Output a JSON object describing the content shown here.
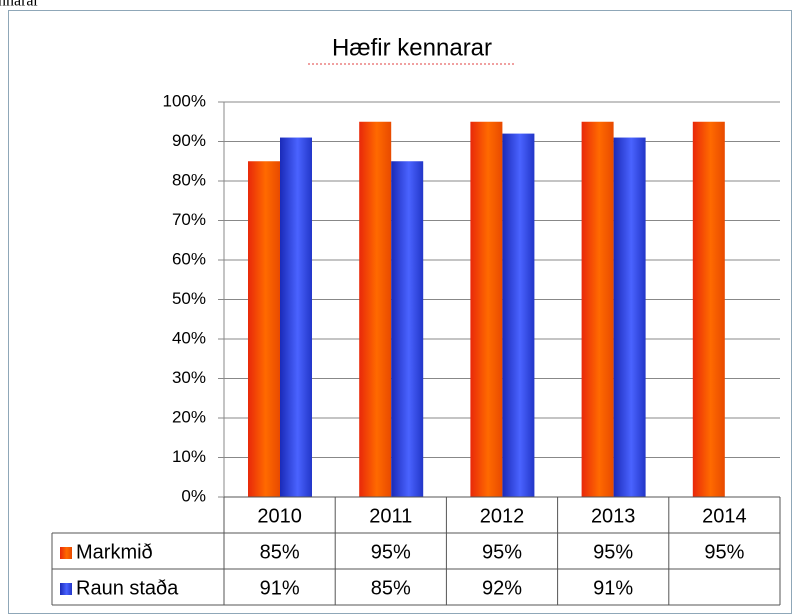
{
  "caption": "nnarar",
  "chart_data": {
    "type": "bar",
    "title": "Hæfir kennarar",
    "categories": [
      "2010",
      "2011",
      "2012",
      "2013",
      "2014"
    ],
    "series": [
      {
        "name": "Markmið",
        "color": "#ff5a00",
        "values": [
          85,
          95,
          95,
          95,
          95
        ],
        "value_labels": [
          "85%",
          "95%",
          "95%",
          "95%",
          "95%"
        ]
      },
      {
        "name": "Raun staða",
        "color": "#2a3de0",
        "values": [
          91,
          85,
          92,
          91,
          null
        ],
        "value_labels": [
          "91%",
          "85%",
          "92%",
          "91%",
          null
        ]
      }
    ],
    "ylim": [
      0,
      100
    ],
    "yticks": [
      {
        "value": 0,
        "label": "0%"
      },
      {
        "value": 10,
        "label": "10%"
      },
      {
        "value": 20,
        "label": "20%"
      },
      {
        "value": 30,
        "label": "30%"
      },
      {
        "value": 40,
        "label": "40%"
      },
      {
        "value": 50,
        "label": "50%"
      },
      {
        "value": 60,
        "label": "60%"
      },
      {
        "value": 70,
        "label": "70%"
      },
      {
        "value": 80,
        "label": "80%"
      },
      {
        "value": 90,
        "label": "90%"
      },
      {
        "value": 100,
        "label": "100%"
      }
    ],
    "grid": true,
    "data_table": true
  }
}
